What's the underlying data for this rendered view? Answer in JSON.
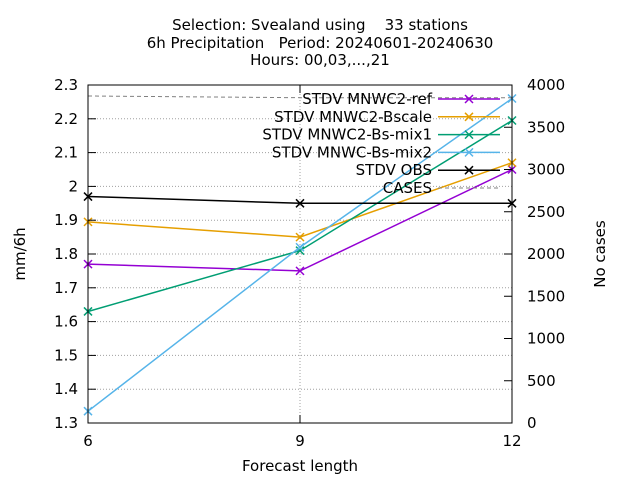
{
  "title_lines": [
    "Selection: Svealand using    33 stations",
    "6h Precipitation   Period: 20240601-20240630",
    "Hours: 00,03,...,21"
  ],
  "chart_data": {
    "type": "line",
    "title": "Selection: Svealand using 33 stations / 6h Precipitation Period: 20240601-20240630 / Hours: 00,03,...,21",
    "xlabel": "Forecast length",
    "ylabel": "mm/6h",
    "y2label": "No cases",
    "x": [
      6,
      9,
      12
    ],
    "xlim": [
      6,
      12
    ],
    "ylim": [
      1.3,
      2.3
    ],
    "y2lim": [
      0,
      4000
    ],
    "x_ticks": [
      "6",
      "9",
      "12"
    ],
    "y_ticks": [
      "1.3",
      "1.4",
      "1.5",
      "1.6",
      "1.7",
      "1.8",
      "1.9",
      "2",
      "2.1",
      "2.2",
      "2.3"
    ],
    "y2_ticks": [
      "0",
      "500",
      "1000",
      "1500",
      "2000",
      "2500",
      "3000",
      "3500",
      "4000"
    ],
    "grid": true,
    "legend_position": "top-right",
    "series": [
      {
        "name": "STDV MNWC2-ref",
        "axis": "y",
        "color": "#9400d3",
        "dash": false,
        "marker": "x",
        "values": [
          1.77,
          1.75,
          2.05
        ]
      },
      {
        "name": "STDV MNWC2-Bscale",
        "axis": "y",
        "color": "#e69f00",
        "dash": false,
        "marker": "x",
        "values": [
          1.895,
          1.85,
          2.07
        ]
      },
      {
        "name": "STDV MNWC2-Bs-mix1",
        "axis": "y",
        "color": "#009e73",
        "dash": false,
        "marker": "x",
        "values": [
          1.63,
          1.81,
          2.195
        ]
      },
      {
        "name": "STDV MNWC-Bs-mix2",
        "axis": "y",
        "color": "#56b4e9",
        "dash": false,
        "marker": "x",
        "values": [
          1.335,
          1.82,
          2.26
        ]
      },
      {
        "name": "STDV OBS",
        "axis": "y",
        "color": "#000000",
        "dash": false,
        "marker": "x",
        "values": [
          1.97,
          1.95,
          1.95
        ]
      },
      {
        "name": "CASES",
        "axis": "y2",
        "color": "#808080",
        "dash": true,
        "marker": "none",
        "values": [
          3870,
          3850,
          3850
        ]
      }
    ]
  }
}
